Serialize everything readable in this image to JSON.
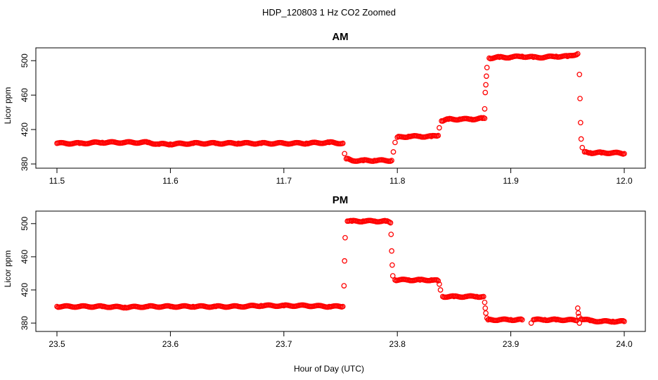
{
  "title": "HDP_120803  1 Hz CO2 Zoomed",
  "xlabel": "Hour of Day (UTC)",
  "colors": {
    "points": "#ff0000",
    "axes": "#000000"
  },
  "chart_data": [
    {
      "type": "scatter",
      "title": "AM",
      "xlabel": "",
      "ylabel": "Licor ppm",
      "xlim": [
        11.5,
        12.0
      ],
      "ylim": [
        380,
        510
      ],
      "xticks": [
        "11.5",
        "11.6",
        "11.7",
        "11.8",
        "11.9",
        "12.0"
      ],
      "yticks": [
        "380",
        "420",
        "460",
        "500"
      ],
      "marker": "open-circle",
      "series": [
        {
          "points": [
            [
              11.5,
              404
            ],
            [
              11.52,
              404
            ],
            [
              11.54,
              405
            ],
            [
              11.56,
              405
            ],
            [
              11.58,
              405
            ],
            [
              11.59,
              403
            ],
            [
              11.6,
              403
            ],
            [
              11.62,
              404
            ],
            [
              11.64,
              404
            ],
            [
              11.66,
              404
            ],
            [
              11.68,
              404
            ],
            [
              11.7,
              404
            ],
            [
              11.72,
              404
            ],
            [
              11.74,
              405
            ],
            [
              11.752,
              404
            ],
            [
              11.7535,
              392
            ],
            [
              11.755,
              386
            ],
            [
              11.76,
              384
            ],
            [
              11.77,
              384
            ],
            [
              11.78,
              384
            ],
            [
              11.795,
              384
            ],
            [
              11.7965,
              394
            ],
            [
              11.798,
              405
            ],
            [
              11.8,
              411
            ],
            [
              11.81,
              412
            ],
            [
              11.82,
              412
            ],
            [
              11.83,
              412
            ],
            [
              11.836,
              413
            ],
            [
              11.837,
              422
            ],
            [
              11.839,
              430
            ],
            [
              11.845,
              432
            ],
            [
              11.855,
              432
            ],
            [
              11.865,
              432
            ],
            [
              11.875,
              433
            ],
            [
              11.877,
              433
            ],
            [
              11.877,
              444
            ],
            [
              11.8775,
              463
            ],
            [
              11.878,
              472
            ],
            [
              11.8785,
              482
            ],
            [
              11.879,
              492
            ],
            [
              11.881,
              503
            ],
            [
              11.89,
              504
            ],
            [
              11.9,
              504
            ],
            [
              11.91,
              505
            ],
            [
              11.92,
              504
            ],
            [
              11.93,
              504
            ],
            [
              11.94,
              505
            ],
            [
              11.95,
              505
            ],
            [
              11.959,
              508
            ],
            [
              11.9605,
              484
            ],
            [
              11.961,
              456
            ],
            [
              11.9615,
              428
            ],
            [
              11.962,
              409
            ],
            [
              11.963,
              399
            ],
            [
              11.965,
              394
            ],
            [
              11.97,
              393
            ],
            [
              11.98,
              393
            ],
            [
              11.99,
              393
            ],
            [
              12.0,
              392
            ]
          ]
        }
      ]
    },
    {
      "type": "scatter",
      "title": "PM",
      "xlabel": "",
      "ylabel": "Licor ppm",
      "xlim": [
        23.5,
        24.0
      ],
      "ylim": [
        375,
        510
      ],
      "xticks": [
        "23.5",
        "23.6",
        "23.7",
        "23.8",
        "23.9",
        "24.0"
      ],
      "yticks": [
        "380",
        "420",
        "460",
        "500"
      ],
      "marker": "open-circle",
      "series": [
        {
          "points": [
            [
              23.5,
              400
            ],
            [
              23.52,
              400
            ],
            [
              23.54,
              400
            ],
            [
              23.56,
              399
            ],
            [
              23.58,
              400
            ],
            [
              23.6,
              400
            ],
            [
              23.62,
              400
            ],
            [
              23.64,
              400
            ],
            [
              23.66,
              400
            ],
            [
              23.68,
              401
            ],
            [
              23.7,
              401
            ],
            [
              23.72,
              401
            ],
            [
              23.74,
              400
            ],
            [
              23.752,
              400
            ],
            [
              23.753,
              425
            ],
            [
              23.7535,
              455
            ],
            [
              23.754,
              483
            ],
            [
              23.756,
              503
            ],
            [
              23.76,
              503
            ],
            [
              23.77,
              503
            ],
            [
              23.78,
              503
            ],
            [
              23.79,
              503
            ],
            [
              23.794,
              501
            ],
            [
              23.7945,
              487
            ],
            [
              23.795,
              467
            ],
            [
              23.7955,
              450
            ],
            [
              23.796,
              437
            ],
            [
              23.798,
              432
            ],
            [
              23.81,
              432
            ],
            [
              23.82,
              432
            ],
            [
              23.83,
              432
            ],
            [
              23.836,
              431
            ],
            [
              23.837,
              427
            ],
            [
              23.838,
              420
            ],
            [
              23.84,
              412
            ],
            [
              23.85,
              412
            ],
            [
              23.86,
              412
            ],
            [
              23.87,
              412
            ],
            [
              23.876,
              412
            ],
            [
              23.877,
              405
            ],
            [
              23.8775,
              398
            ],
            [
              23.878,
              392
            ],
            [
              23.879,
              386
            ],
            [
              23.88,
              384
            ],
            [
              23.89,
              384
            ],
            [
              23.9,
              384
            ],
            [
              23.91,
              384
            ],
            [
              23.918,
              380
            ],
            [
              23.92,
              384
            ],
            [
              23.93,
              384
            ],
            [
              23.94,
              384
            ],
            [
              23.95,
              384
            ],
            [
              23.958,
              383
            ],
            [
              23.959,
              398
            ],
            [
              23.9595,
              392
            ],
            [
              23.96,
              388
            ],
            [
              23.9605,
              380
            ],
            [
              23.962,
              385
            ],
            [
              23.97,
              383
            ],
            [
              23.98,
              382
            ],
            [
              23.99,
              382
            ],
            [
              24.0,
              382
            ]
          ]
        }
      ]
    }
  ]
}
